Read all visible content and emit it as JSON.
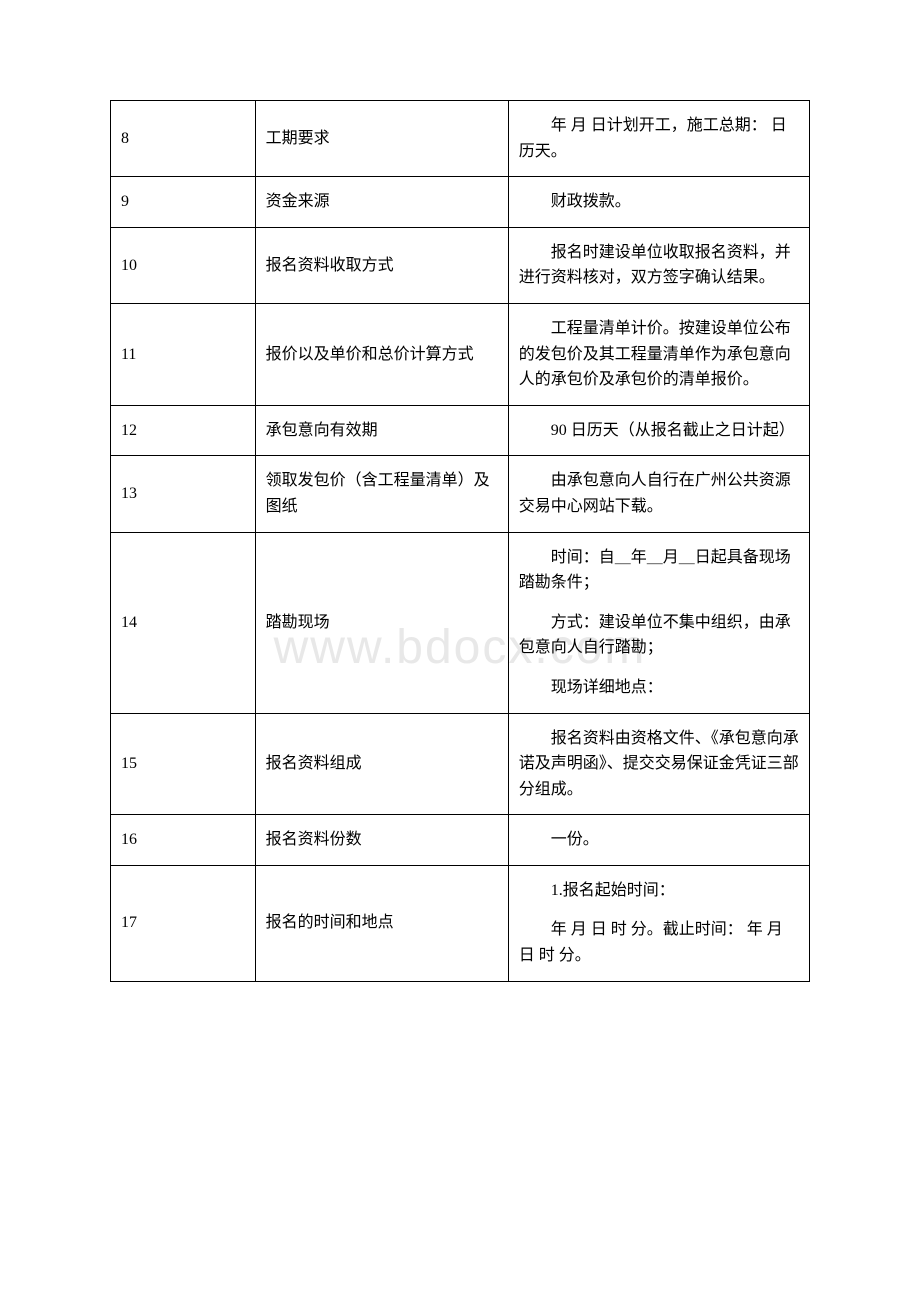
{
  "watermark": "www.bdocx.com",
  "rows": [
    {
      "num": "8",
      "label": "工期要求",
      "content": [
        {
          "text": "年 月 日计划开工，施工总期： 日历天。",
          "indent": true
        }
      ]
    },
    {
      "num": "9",
      "label": "资金来源",
      "content": [
        {
          "text": "财政拨款。",
          "indent": true
        }
      ]
    },
    {
      "num": "10",
      "label": "报名资料收取方式",
      "content": [
        {
          "text": "报名时建设单位收取报名资料，并进行资料核对，双方签字确认结果。",
          "indent": true
        }
      ]
    },
    {
      "num": "11",
      "label": "报价以及单价和总价计算方式",
      "content": [
        {
          "text": "工程量清单计价。按建设单位公布的发包价及其工程量清单作为承包意向人的承包价及承包价的清单报价。",
          "indent": true
        }
      ]
    },
    {
      "num": "12",
      "label": "承包意向有效期",
      "content": [
        {
          "text": "90 日历天（从报名截止之日计起）",
          "indent": true
        }
      ]
    },
    {
      "num": "13",
      "label": "领取发包价（含工程量清单）及图纸",
      "content": [
        {
          "text": "由承包意向人自行在广州公共资源交易中心网站下载。",
          "indent": true
        }
      ]
    },
    {
      "num": "14",
      "label": "踏勘现场",
      "contentGroups": [
        [
          {
            "text": "时间：自＿年＿月＿日起具备现场踏勘条件；",
            "indent": true
          }
        ],
        [
          {
            "text": "方式：建设单位不集中组织，由承包意向人自行踏勘；",
            "indent": true
          }
        ],
        [
          {
            "text": "现场详细地点：",
            "indent": true
          }
        ]
      ]
    },
    {
      "num": "15",
      "label": "报名资料组成",
      "content": [
        {
          "text": "报名资料由资格文件、《承包意向承诺及声明函》、提交交易保证金凭证三部分组成。",
          "indent": true
        }
      ]
    },
    {
      "num": "16",
      "label": "报名资料份数",
      "content": [
        {
          "text": "一份。",
          "indent": true
        }
      ]
    },
    {
      "num": "17",
      "label": "报名的时间和地点",
      "contentGroups": [
        [
          {
            "text": "1.报名起始时间：",
            "indent": true
          }
        ],
        [
          {
            "text": "年 月 日 时 分。截止时间： 年 月 日 时 分。",
            "indent": true
          }
        ]
      ]
    }
  ]
}
